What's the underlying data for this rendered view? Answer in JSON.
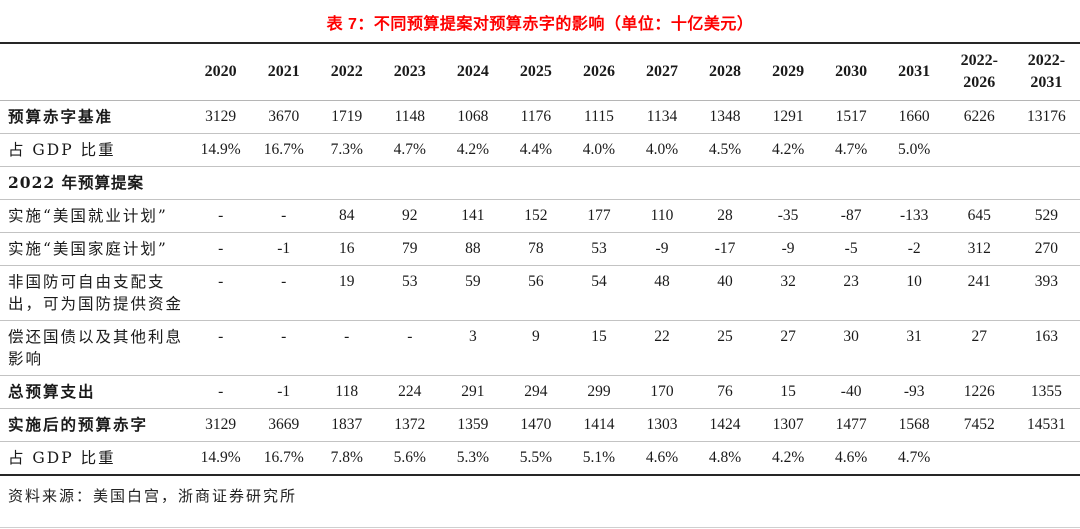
{
  "page": {
    "title": "表 7：不同预算提案对预算赤字的影响（单位：十亿美元）",
    "source_note": "资料来源：美国白宫，浙商证券研究所",
    "colors": {
      "title_red": "#fe0000",
      "rule_dark": "#262626",
      "row_separator": "#c3c3c3",
      "text": "#1a1a1a"
    }
  },
  "chart_data": {
    "type": "table",
    "title": "表 7：不同预算提案对预算赤字的影响（单位：十亿美元）",
    "header": [
      "",
      "2020",
      "2021",
      "2022",
      "2023",
      "2024",
      "2025",
      "2026",
      "2027",
      "2028",
      "2029",
      "2030",
      "2031",
      "2022-2026",
      "2022-2031"
    ],
    "rows": [
      {
        "label": "预算赤字基准",
        "bold": true,
        "section": false,
        "values": [
          "3129",
          "3670",
          "1719",
          "1148",
          "1068",
          "1176",
          "1115",
          "1134",
          "1348",
          "1291",
          "1517",
          "1660",
          "6226",
          "13176"
        ]
      },
      {
        "label": "占 GDP 比重",
        "bold": false,
        "section": false,
        "values": [
          "14.9%",
          "16.7%",
          "7.3%",
          "4.7%",
          "4.2%",
          "4.4%",
          "4.0%",
          "4.0%",
          "4.5%",
          "4.2%",
          "4.7%",
          "5.0%",
          "",
          ""
        ]
      },
      {
        "label": "2022 年预算提案",
        "bold": true,
        "section": true,
        "values": [
          "",
          "",
          "",
          "",
          "",
          "",
          "",
          "",
          "",
          "",
          "",
          "",
          "",
          ""
        ]
      },
      {
        "label": "实施“美国就业计划”",
        "bold": false,
        "section": false,
        "values": [
          "-",
          "-",
          "84",
          "92",
          "141",
          "152",
          "177",
          "110",
          "28",
          "-35",
          "-87",
          "-133",
          "645",
          "529"
        ]
      },
      {
        "label": "实施“美国家庭计划”",
        "bold": false,
        "section": false,
        "values": [
          "-",
          "-1",
          "16",
          "79",
          "88",
          "78",
          "53",
          "-9",
          "-17",
          "-9",
          "-5",
          "-2",
          "312",
          "270"
        ]
      },
      {
        "label": "非国防可自由支配支出，可为国防提供资金",
        "bold": false,
        "section": false,
        "values": [
          "-",
          "-",
          "19",
          "53",
          "59",
          "56",
          "54",
          "48",
          "40",
          "32",
          "23",
          "10",
          "241",
          "393"
        ]
      },
      {
        "label": "偿还国债以及其他利息影响",
        "bold": false,
        "section": false,
        "values": [
          "-",
          "-",
          "-",
          "-",
          "3",
          "9",
          "15",
          "22",
          "25",
          "27",
          "30",
          "31",
          "27",
          "163"
        ]
      },
      {
        "label": "总预算支出",
        "bold": true,
        "section": false,
        "values": [
          "-",
          "-1",
          "118",
          "224",
          "291",
          "294",
          "299",
          "170",
          "76",
          "15",
          "-40",
          "-93",
          "1226",
          "1355"
        ]
      },
      {
        "label": "实施后的预算赤字",
        "bold": true,
        "section": false,
        "values": [
          "3129",
          "3669",
          "1837",
          "1372",
          "1359",
          "1470",
          "1414",
          "1303",
          "1424",
          "1307",
          "1477",
          "1568",
          "7452",
          "14531"
        ]
      },
      {
        "label": "占 GDP 比重",
        "bold": false,
        "section": false,
        "values": [
          "14.9%",
          "16.7%",
          "7.8%",
          "5.6%",
          "5.3%",
          "5.5%",
          "5.1%",
          "4.6%",
          "4.8%",
          "4.2%",
          "4.6%",
          "4.7%",
          "",
          ""
        ]
      }
    ]
  }
}
